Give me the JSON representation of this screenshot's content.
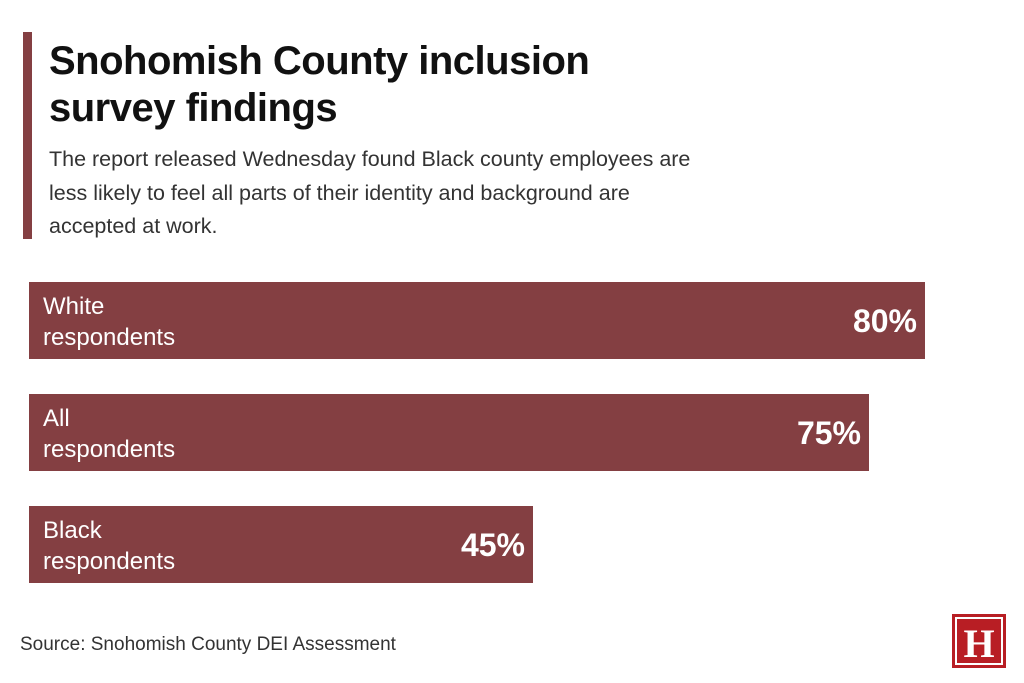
{
  "header": {
    "title": "Snohomish County inclusion survey findings",
    "subtitle": "The report released Wednesday found Black county employees are less likely to feel all parts of their identity and background are accepted at work."
  },
  "chart_data": {
    "type": "bar",
    "orientation": "horizontal",
    "title": "Snohomish County inclusion survey findings",
    "categories": [
      "White respondents",
      "All respondents",
      "Black respondents"
    ],
    "category_lines": [
      [
        "White",
        "respondents"
      ],
      [
        "All",
        "respondents"
      ],
      [
        "Black",
        "respondents"
      ]
    ],
    "values": [
      80,
      75,
      45
    ],
    "value_labels": [
      "80%",
      "75%",
      "45%"
    ],
    "unit": "%",
    "xlim": [
      0,
      100
    ],
    "bar_color": "#843f42",
    "label_color": "#ffffff"
  },
  "footer": {
    "source": "Source: Snohomish County DEI Assessment",
    "logo_letter": "H",
    "logo_color": "#b81e24"
  }
}
